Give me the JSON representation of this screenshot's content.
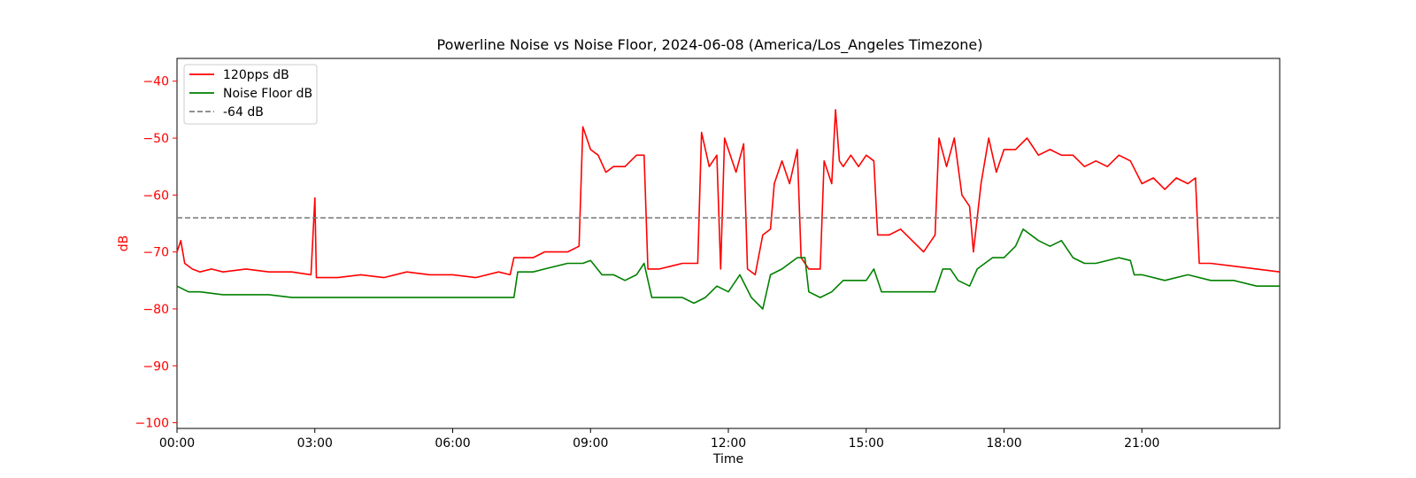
{
  "chart_data": {
    "type": "line",
    "title": "Powerline Noise vs Noise Floor, 2024-06-08 (America/Los_Angeles Timezone)",
    "xlabel": "Time",
    "ylabel": "dB",
    "x_unit": "time of day (HH:MM), 2024-06-08",
    "xlim": [
      "00:00",
      "24:00"
    ],
    "ylim": [
      -101,
      -36
    ],
    "x_ticks": [
      "00:00",
      "03:00",
      "06:00",
      "09:00",
      "12:00",
      "15:00",
      "18:00",
      "21:00"
    ],
    "y_ticks": [
      -40,
      -50,
      -60,
      -70,
      -80,
      -90,
      -100
    ],
    "grid": false,
    "legend_position": "upper-left",
    "reference_line": {
      "label": "-64 dB",
      "y": -64,
      "color": "#808080",
      "style": "dashed"
    },
    "series": [
      {
        "name": "120pps dB",
        "color": "#ff0000",
        "points": [
          [
            "00:00",
            -70
          ],
          [
            "00:05",
            -68
          ],
          [
            "00:10",
            -72
          ],
          [
            "00:20",
            -73
          ],
          [
            "00:30",
            -73.5
          ],
          [
            "00:45",
            -73
          ],
          [
            "01:00",
            -73.5
          ],
          [
            "01:30",
            -73
          ],
          [
            "02:00",
            -73.5
          ],
          [
            "02:30",
            -73.5
          ],
          [
            "02:55",
            -74
          ],
          [
            "03:00",
            -60.5
          ],
          [
            "03:02",
            -74.5
          ],
          [
            "03:30",
            -74.5
          ],
          [
            "04:00",
            -74
          ],
          [
            "04:30",
            -74.5
          ],
          [
            "05:00",
            -73.5
          ],
          [
            "05:30",
            -74
          ],
          [
            "06:00",
            -74
          ],
          [
            "06:30",
            -74.5
          ],
          [
            "07:00",
            -73.5
          ],
          [
            "07:15",
            -74
          ],
          [
            "07:20",
            -71
          ],
          [
            "07:45",
            -71
          ],
          [
            "08:00",
            -70
          ],
          [
            "08:30",
            -70
          ],
          [
            "08:45",
            -69
          ],
          [
            "08:50",
            -48
          ],
          [
            "09:00",
            -52
          ],
          [
            "09:10",
            -53
          ],
          [
            "09:20",
            -56
          ],
          [
            "09:30",
            -55
          ],
          [
            "09:45",
            -55
          ],
          [
            "10:00",
            -53
          ],
          [
            "10:10",
            -53
          ],
          [
            "10:15",
            -73
          ],
          [
            "10:30",
            -73
          ],
          [
            "11:00",
            -72
          ],
          [
            "11:20",
            -72
          ],
          [
            "11:25",
            -49
          ],
          [
            "11:35",
            -55
          ],
          [
            "11:45",
            -53
          ],
          [
            "11:50",
            -73
          ],
          [
            "11:55",
            -50
          ],
          [
            "12:00",
            -52
          ],
          [
            "12:10",
            -56
          ],
          [
            "12:20",
            -51
          ],
          [
            "12:25",
            -73
          ],
          [
            "12:35",
            -74
          ],
          [
            "12:45",
            -67
          ],
          [
            "12:55",
            -66
          ],
          [
            "13:00",
            -58
          ],
          [
            "13:10",
            -54
          ],
          [
            "13:20",
            -58
          ],
          [
            "13:30",
            -52
          ],
          [
            "13:35",
            -71
          ],
          [
            "13:45",
            -73
          ],
          [
            "14:00",
            -73
          ],
          [
            "14:05",
            -54
          ],
          [
            "14:15",
            -58
          ],
          [
            "14:20",
            -45
          ],
          [
            "14:25",
            -54
          ],
          [
            "14:30",
            -55
          ],
          [
            "14:40",
            -53
          ],
          [
            "14:50",
            -55
          ],
          [
            "15:00",
            -53
          ],
          [
            "15:10",
            -54
          ],
          [
            "15:15",
            -67
          ],
          [
            "15:30",
            -67
          ],
          [
            "15:45",
            -66
          ],
          [
            "16:00",
            -68
          ],
          [
            "16:15",
            -70
          ],
          [
            "16:30",
            -67
          ],
          [
            "16:35",
            -50
          ],
          [
            "16:45",
            -55
          ],
          [
            "16:55",
            -50
          ],
          [
            "17:05",
            -60
          ],
          [
            "17:15",
            -62
          ],
          [
            "17:20",
            -70
          ],
          [
            "17:30",
            -58
          ],
          [
            "17:40",
            -50
          ],
          [
            "17:50",
            -56
          ],
          [
            "18:00",
            -52
          ],
          [
            "18:15",
            -52
          ],
          [
            "18:30",
            -50
          ],
          [
            "18:45",
            -53
          ],
          [
            "19:00",
            -52
          ],
          [
            "19:15",
            -53
          ],
          [
            "19:30",
            -53
          ],
          [
            "19:45",
            -55
          ],
          [
            "20:00",
            -54
          ],
          [
            "20:15",
            -55
          ],
          [
            "20:30",
            -53
          ],
          [
            "20:45",
            -54
          ],
          [
            "21:00",
            -58
          ],
          [
            "21:15",
            -57
          ],
          [
            "21:30",
            -59
          ],
          [
            "21:45",
            -57
          ],
          [
            "22:00",
            -58
          ],
          [
            "22:10",
            -57
          ],
          [
            "22:15",
            -72
          ],
          [
            "22:30",
            -72
          ],
          [
            "23:00",
            -72.5
          ],
          [
            "23:30",
            -73
          ],
          [
            "24:00",
            -73.5
          ]
        ]
      },
      {
        "name": "Noise Floor dB",
        "color": "#008000",
        "points": [
          [
            "00:00",
            -76
          ],
          [
            "00:15",
            -77
          ],
          [
            "00:30",
            -77
          ],
          [
            "01:00",
            -77.5
          ],
          [
            "01:30",
            -77.5
          ],
          [
            "02:00",
            -77.5
          ],
          [
            "02:30",
            -78
          ],
          [
            "03:00",
            -78
          ],
          [
            "04:00",
            -78
          ],
          [
            "05:00",
            -78
          ],
          [
            "06:00",
            -78
          ],
          [
            "07:00",
            -78
          ],
          [
            "07:20",
            -78
          ],
          [
            "07:25",
            -73.5
          ],
          [
            "07:45",
            -73.5
          ],
          [
            "08:00",
            -73
          ],
          [
            "08:30",
            -72
          ],
          [
            "08:50",
            -72
          ],
          [
            "09:00",
            -71.5
          ],
          [
            "09:15",
            -74
          ],
          [
            "09:30",
            -74
          ],
          [
            "09:45",
            -75
          ],
          [
            "10:00",
            -74
          ],
          [
            "10:10",
            -72
          ],
          [
            "10:20",
            -78
          ],
          [
            "10:45",
            -78
          ],
          [
            "11:00",
            -78
          ],
          [
            "11:15",
            -79
          ],
          [
            "11:30",
            -78
          ],
          [
            "11:45",
            -76
          ],
          [
            "12:00",
            -77
          ],
          [
            "12:15",
            -74
          ],
          [
            "12:30",
            -78
          ],
          [
            "12:45",
            -80
          ],
          [
            "12:55",
            -74
          ],
          [
            "13:10",
            -73
          ],
          [
            "13:30",
            -71
          ],
          [
            "13:40",
            -71
          ],
          [
            "13:45",
            -77
          ],
          [
            "14:00",
            -78
          ],
          [
            "14:15",
            -77
          ],
          [
            "14:30",
            -75
          ],
          [
            "14:45",
            -75
          ],
          [
            "15:00",
            -75
          ],
          [
            "15:10",
            -73
          ],
          [
            "15:20",
            -77
          ],
          [
            "15:45",
            -77
          ],
          [
            "16:00",
            -77
          ],
          [
            "16:30",
            -77
          ],
          [
            "16:40",
            -73
          ],
          [
            "16:50",
            -73
          ],
          [
            "17:00",
            -75
          ],
          [
            "17:15",
            -76
          ],
          [
            "17:25",
            -73
          ],
          [
            "17:45",
            -71
          ],
          [
            "18:00",
            -71
          ],
          [
            "18:15",
            -69
          ],
          [
            "18:25",
            -66
          ],
          [
            "18:45",
            -68
          ],
          [
            "19:00",
            -69
          ],
          [
            "19:15",
            -68
          ],
          [
            "19:30",
            -71
          ],
          [
            "19:45",
            -72
          ],
          [
            "20:00",
            -72
          ],
          [
            "20:30",
            -71
          ],
          [
            "20:45",
            -71.5
          ],
          [
            "20:50",
            -74
          ],
          [
            "21:00",
            -74
          ],
          [
            "21:30",
            -75
          ],
          [
            "22:00",
            -74
          ],
          [
            "22:30",
            -75
          ],
          [
            "23:00",
            -75
          ],
          [
            "23:30",
            -76
          ],
          [
            "24:00",
            -76
          ]
        ]
      }
    ]
  },
  "legend": {
    "items": [
      {
        "label": "120pps dB",
        "color": "#ff0000",
        "style": "solid"
      },
      {
        "label": "Noise Floor dB",
        "color": "#008000",
        "style": "solid"
      },
      {
        "label": "-64 dB",
        "color": "#808080",
        "style": "dashed"
      }
    ]
  },
  "colors": {
    "axis_accent": "#ff0000",
    "frame": "#000000"
  }
}
